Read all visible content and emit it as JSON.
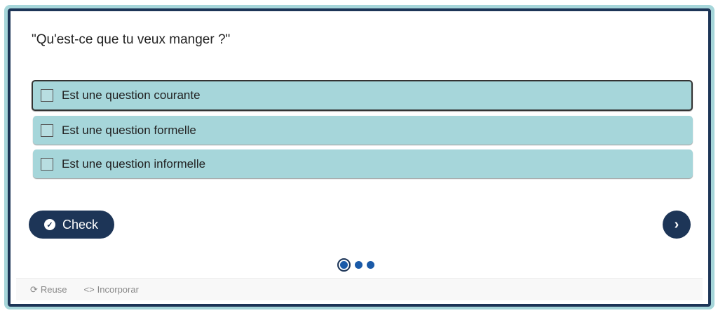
{
  "question": "\"Qu'est-ce que tu veux manger ?\"",
  "options": [
    {
      "label": "Est une question courante",
      "checked": false
    },
    {
      "label": "Est une question formelle",
      "checked": false
    },
    {
      "label": "Est une question informelle",
      "checked": false
    }
  ],
  "check_label": "Check",
  "pagination": {
    "current": 1,
    "total": 3
  },
  "footer": {
    "reuse": "Reuse",
    "embed": "Incorporar"
  },
  "colors": {
    "accent": "#1d3557",
    "option_bg": "#a6d6da",
    "dot": "#1a5aa8"
  }
}
